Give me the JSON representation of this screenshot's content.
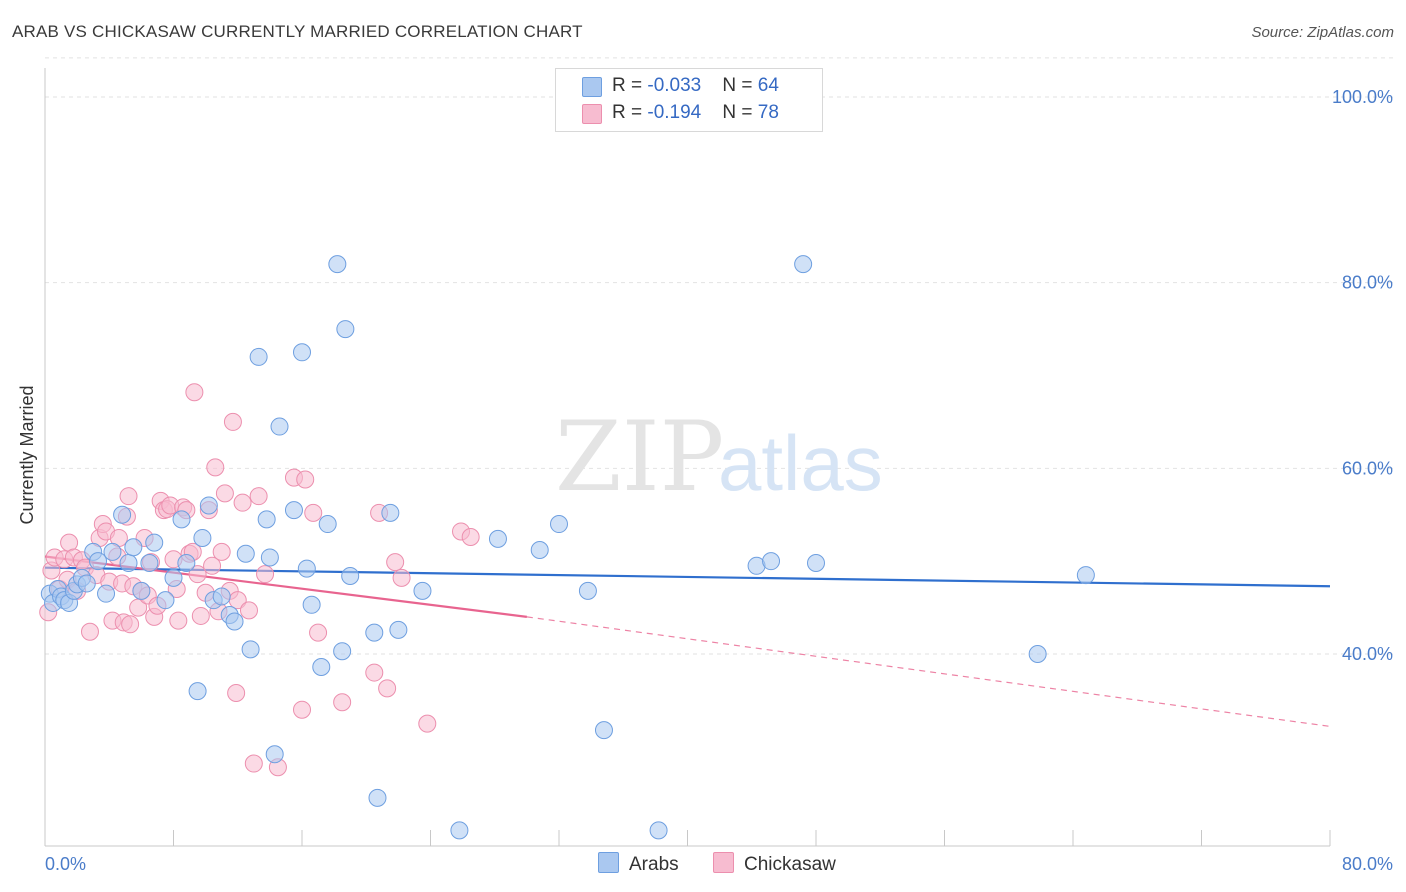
{
  "title": "ARAB VS CHICKASAW CURRENTLY MARRIED CORRELATION CHART",
  "source": "Source: ZipAtlas.com",
  "watermark": {
    "zip": "ZIP",
    "atlas": "atlas"
  },
  "legend": {
    "rows": [
      {
        "r_label": "R = ",
        "r_value": "-0.033",
        "n_label": "N = ",
        "n_value": "64"
      },
      {
        "r_label": "R = ",
        "r_value": "-0.194",
        "n_label": "N = ",
        "n_value": "78"
      }
    ]
  },
  "bottom_legend": {
    "arabs": "Arabs",
    "chickasaw": "Chickasaw"
  },
  "colors": {
    "arabs_fill": "#aac8f0",
    "arabs_stroke": "#6e9fe0",
    "arabs_line": "#2f6fce",
    "chickasaw_fill": "#f7bcd0",
    "chickasaw_stroke": "#ec8fae",
    "chickasaw_line": "#e8648f",
    "tick_label": "#4a7cc9",
    "grid": "#e2e2e2"
  },
  "chart_data": {
    "type": "scatter",
    "title": "ARAB VS CHICKASAW CURRENTLY MARRIED CORRELATION CHART",
    "xlabel": "",
    "ylabel": "Currently Married",
    "xlim": [
      0,
      80
    ],
    "ylim": [
      20,
      104
    ],
    "y_ticks": [
      40,
      60,
      80,
      100
    ],
    "y_tick_labels": [
      "40.0%",
      "60.0%",
      "80.0%",
      "100.0%"
    ],
    "x_tick_labels": {
      "left": "0.0%",
      "right": "80.0%"
    },
    "grid": "horizontal dashed",
    "legend_position": "top-center",
    "series": [
      {
        "name": "Arabs",
        "r": -0.033,
        "n": 64,
        "trend": {
          "x0": 0,
          "y0": 49.3,
          "x1": 80,
          "y1": 47.3
        },
        "points": [
          [
            0.3,
            46.5
          ],
          [
            0.5,
            45.5
          ],
          [
            0.8,
            47
          ],
          [
            1,
            46.2
          ],
          [
            1.2,
            45.8
          ],
          [
            1.5,
            45.5
          ],
          [
            1.8,
            46.8
          ],
          [
            2,
            47.5
          ],
          [
            2.3,
            48.2
          ],
          [
            2.6,
            47.6
          ],
          [
            3,
            51
          ],
          [
            3.3,
            50
          ],
          [
            3.8,
            46.5
          ],
          [
            4.2,
            51
          ],
          [
            4.8,
            55
          ],
          [
            5.2,
            49.8
          ],
          [
            5.5,
            51.5
          ],
          [
            6,
            46.8
          ],
          [
            6.5,
            49.8
          ],
          [
            6.8,
            52
          ],
          [
            7.5,
            45.8
          ],
          [
            8,
            48.2
          ],
          [
            8.5,
            54.5
          ],
          [
            8.8,
            49.8
          ],
          [
            9.5,
            36
          ],
          [
            9.8,
            52.5
          ],
          [
            10.2,
            56
          ],
          [
            10.5,
            45.8
          ],
          [
            11,
            46.2
          ],
          [
            11.5,
            44.2
          ],
          [
            11.8,
            43.5
          ],
          [
            12.5,
            50.8
          ],
          [
            12.8,
            40.5
          ],
          [
            13.3,
            72
          ],
          [
            13.8,
            54.5
          ],
          [
            14,
            50.4
          ],
          [
            14.3,
            29.2
          ],
          [
            14.6,
            64.5
          ],
          [
            15.5,
            55.5
          ],
          [
            16,
            72.5
          ],
          [
            16.3,
            49.2
          ],
          [
            16.6,
            45.3
          ],
          [
            17.2,
            38.6
          ],
          [
            17.6,
            54
          ],
          [
            18.2,
            82
          ],
          [
            18.5,
            40.3
          ],
          [
            18.7,
            75
          ],
          [
            19,
            48.4
          ],
          [
            20.5,
            42.3
          ],
          [
            20.7,
            24.5
          ],
          [
            21.5,
            55.2
          ],
          [
            22,
            42.6
          ],
          [
            23.5,
            46.8
          ],
          [
            25.8,
            21
          ],
          [
            28.2,
            52.4
          ],
          [
            30.8,
            51.2
          ],
          [
            32,
            54
          ],
          [
            33.8,
            46.8
          ],
          [
            34.8,
            31.8
          ],
          [
            38.2,
            21
          ],
          [
            44.3,
            49.5
          ],
          [
            45.2,
            50
          ],
          [
            47.2,
            82
          ],
          [
            48,
            49.8
          ],
          [
            61.8,
            40
          ],
          [
            64.8,
            48.5
          ]
        ]
      },
      {
        "name": "Chickasaw",
        "r": -0.194,
        "n": 78,
        "trend": {
          "x0": 0,
          "y0": 50.5,
          "x1": 30,
          "y1": 44,
          "dash_x1": 80,
          "dash_y1": 32.2
        },
        "points": [
          [
            0.2,
            44.5
          ],
          [
            0.4,
            49
          ],
          [
            0.6,
            50.4
          ],
          [
            0.9,
            47
          ],
          [
            1.2,
            50.2
          ],
          [
            1.4,
            48
          ],
          [
            1.5,
            52
          ],
          [
            1.8,
            50.4
          ],
          [
            2,
            46.8
          ],
          [
            2.3,
            50.1
          ],
          [
            2.5,
            49.3
          ],
          [
            2.8,
            42.4
          ],
          [
            3.2,
            48.5
          ],
          [
            3.4,
            52.5
          ],
          [
            3.6,
            54
          ],
          [
            3.8,
            53.2
          ],
          [
            4,
            47.8
          ],
          [
            4.2,
            43.6
          ],
          [
            4.5,
            50.5
          ],
          [
            4.6,
            52.5
          ],
          [
            4.8,
            47.6
          ],
          [
            4.9,
            43.4
          ],
          [
            5.1,
            54.8
          ],
          [
            5.2,
            57
          ],
          [
            5.3,
            43.2
          ],
          [
            5.5,
            47.3
          ],
          [
            5.8,
            45
          ],
          [
            6,
            46.8
          ],
          [
            6.2,
            52.5
          ],
          [
            6.4,
            46.3
          ],
          [
            6.6,
            49.9
          ],
          [
            6.8,
            44
          ],
          [
            7,
            45.2
          ],
          [
            7.2,
            56.5
          ],
          [
            7.4,
            55.5
          ],
          [
            7.6,
            55.6
          ],
          [
            7.8,
            56
          ],
          [
            8,
            50.2
          ],
          [
            8.2,
            47
          ],
          [
            8.3,
            43.6
          ],
          [
            8.6,
            55.8
          ],
          [
            8.8,
            55.5
          ],
          [
            9,
            50.8
          ],
          [
            9.2,
            51
          ],
          [
            9.3,
            68.2
          ],
          [
            9.5,
            48.6
          ],
          [
            9.7,
            44.1
          ],
          [
            10,
            46.6
          ],
          [
            10.2,
            55.5
          ],
          [
            10.4,
            49.5
          ],
          [
            10.6,
            60.1
          ],
          [
            10.8,
            44.6
          ],
          [
            11,
            51
          ],
          [
            11.2,
            57.3
          ],
          [
            11.5,
            46.8
          ],
          [
            11.7,
            65
          ],
          [
            11.9,
            35.8
          ],
          [
            12,
            45.8
          ],
          [
            12.3,
            56.3
          ],
          [
            12.7,
            44.7
          ],
          [
            13,
            28.2
          ],
          [
            13.3,
            57
          ],
          [
            13.7,
            48.6
          ],
          [
            14.5,
            27.8
          ],
          [
            15.5,
            59
          ],
          [
            16,
            34
          ],
          [
            16.2,
            58.8
          ],
          [
            16.7,
            55.2
          ],
          [
            17,
            42.3
          ],
          [
            18.5,
            34.8
          ],
          [
            20.5,
            38
          ],
          [
            20.8,
            55.2
          ],
          [
            21.3,
            36.3
          ],
          [
            21.8,
            49.9
          ],
          [
            22.2,
            48.2
          ],
          [
            23.8,
            32.5
          ],
          [
            25.9,
            53.2
          ],
          [
            26.5,
            52.6
          ]
        ]
      }
    ]
  }
}
